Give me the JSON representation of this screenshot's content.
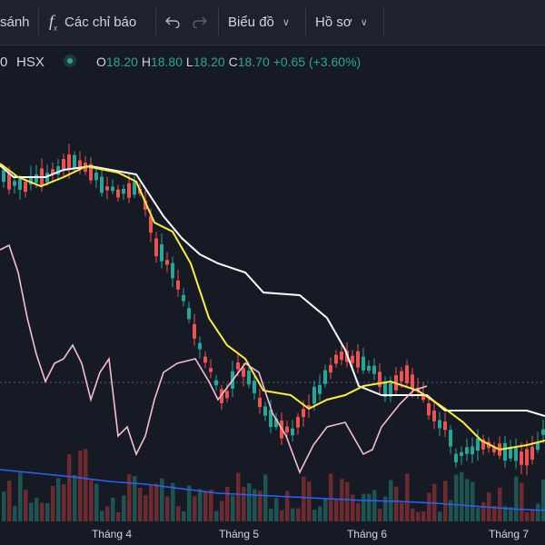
{
  "toolbar": {
    "compare_label": "sánh",
    "indicators_label": "Các chỉ báo",
    "chart_label": "Biểu đồ",
    "profile_label": "Hồ sơ"
  },
  "legend": {
    "symbol_fragment": "0",
    "exchange": "HSX",
    "open_label": "O",
    "open_value": "18.20",
    "high_label": "H",
    "high_value": "18.80",
    "low_label": "L",
    "low_value": "18.20",
    "close_label": "C",
    "close_value": "18.70",
    "change": "+0.65 (+3.60%)"
  },
  "colors": {
    "up": "#26a69a",
    "down": "#ef5350",
    "line_white": "#ffffff",
    "line_yellow": "#ffeb3b",
    "line_pink": "#f8bbd0",
    "line_blue": "#2962ff",
    "background": "#161a25",
    "toolbar": "#1e222d"
  },
  "chart_data": {
    "type": "candlestick",
    "x_ticks": [
      "Tháng 4",
      "Tháng 5",
      "Tháng 6",
      "Tháng 7"
    ],
    "last_bar": {
      "open": 18.2,
      "high": 18.8,
      "low": 18.2,
      "close": 18.7,
      "change": "+0.65 (+3.60%)"
    },
    "indicators": [
      "white line",
      "yellow line",
      "pink oscillator",
      "blue volume average"
    ]
  }
}
